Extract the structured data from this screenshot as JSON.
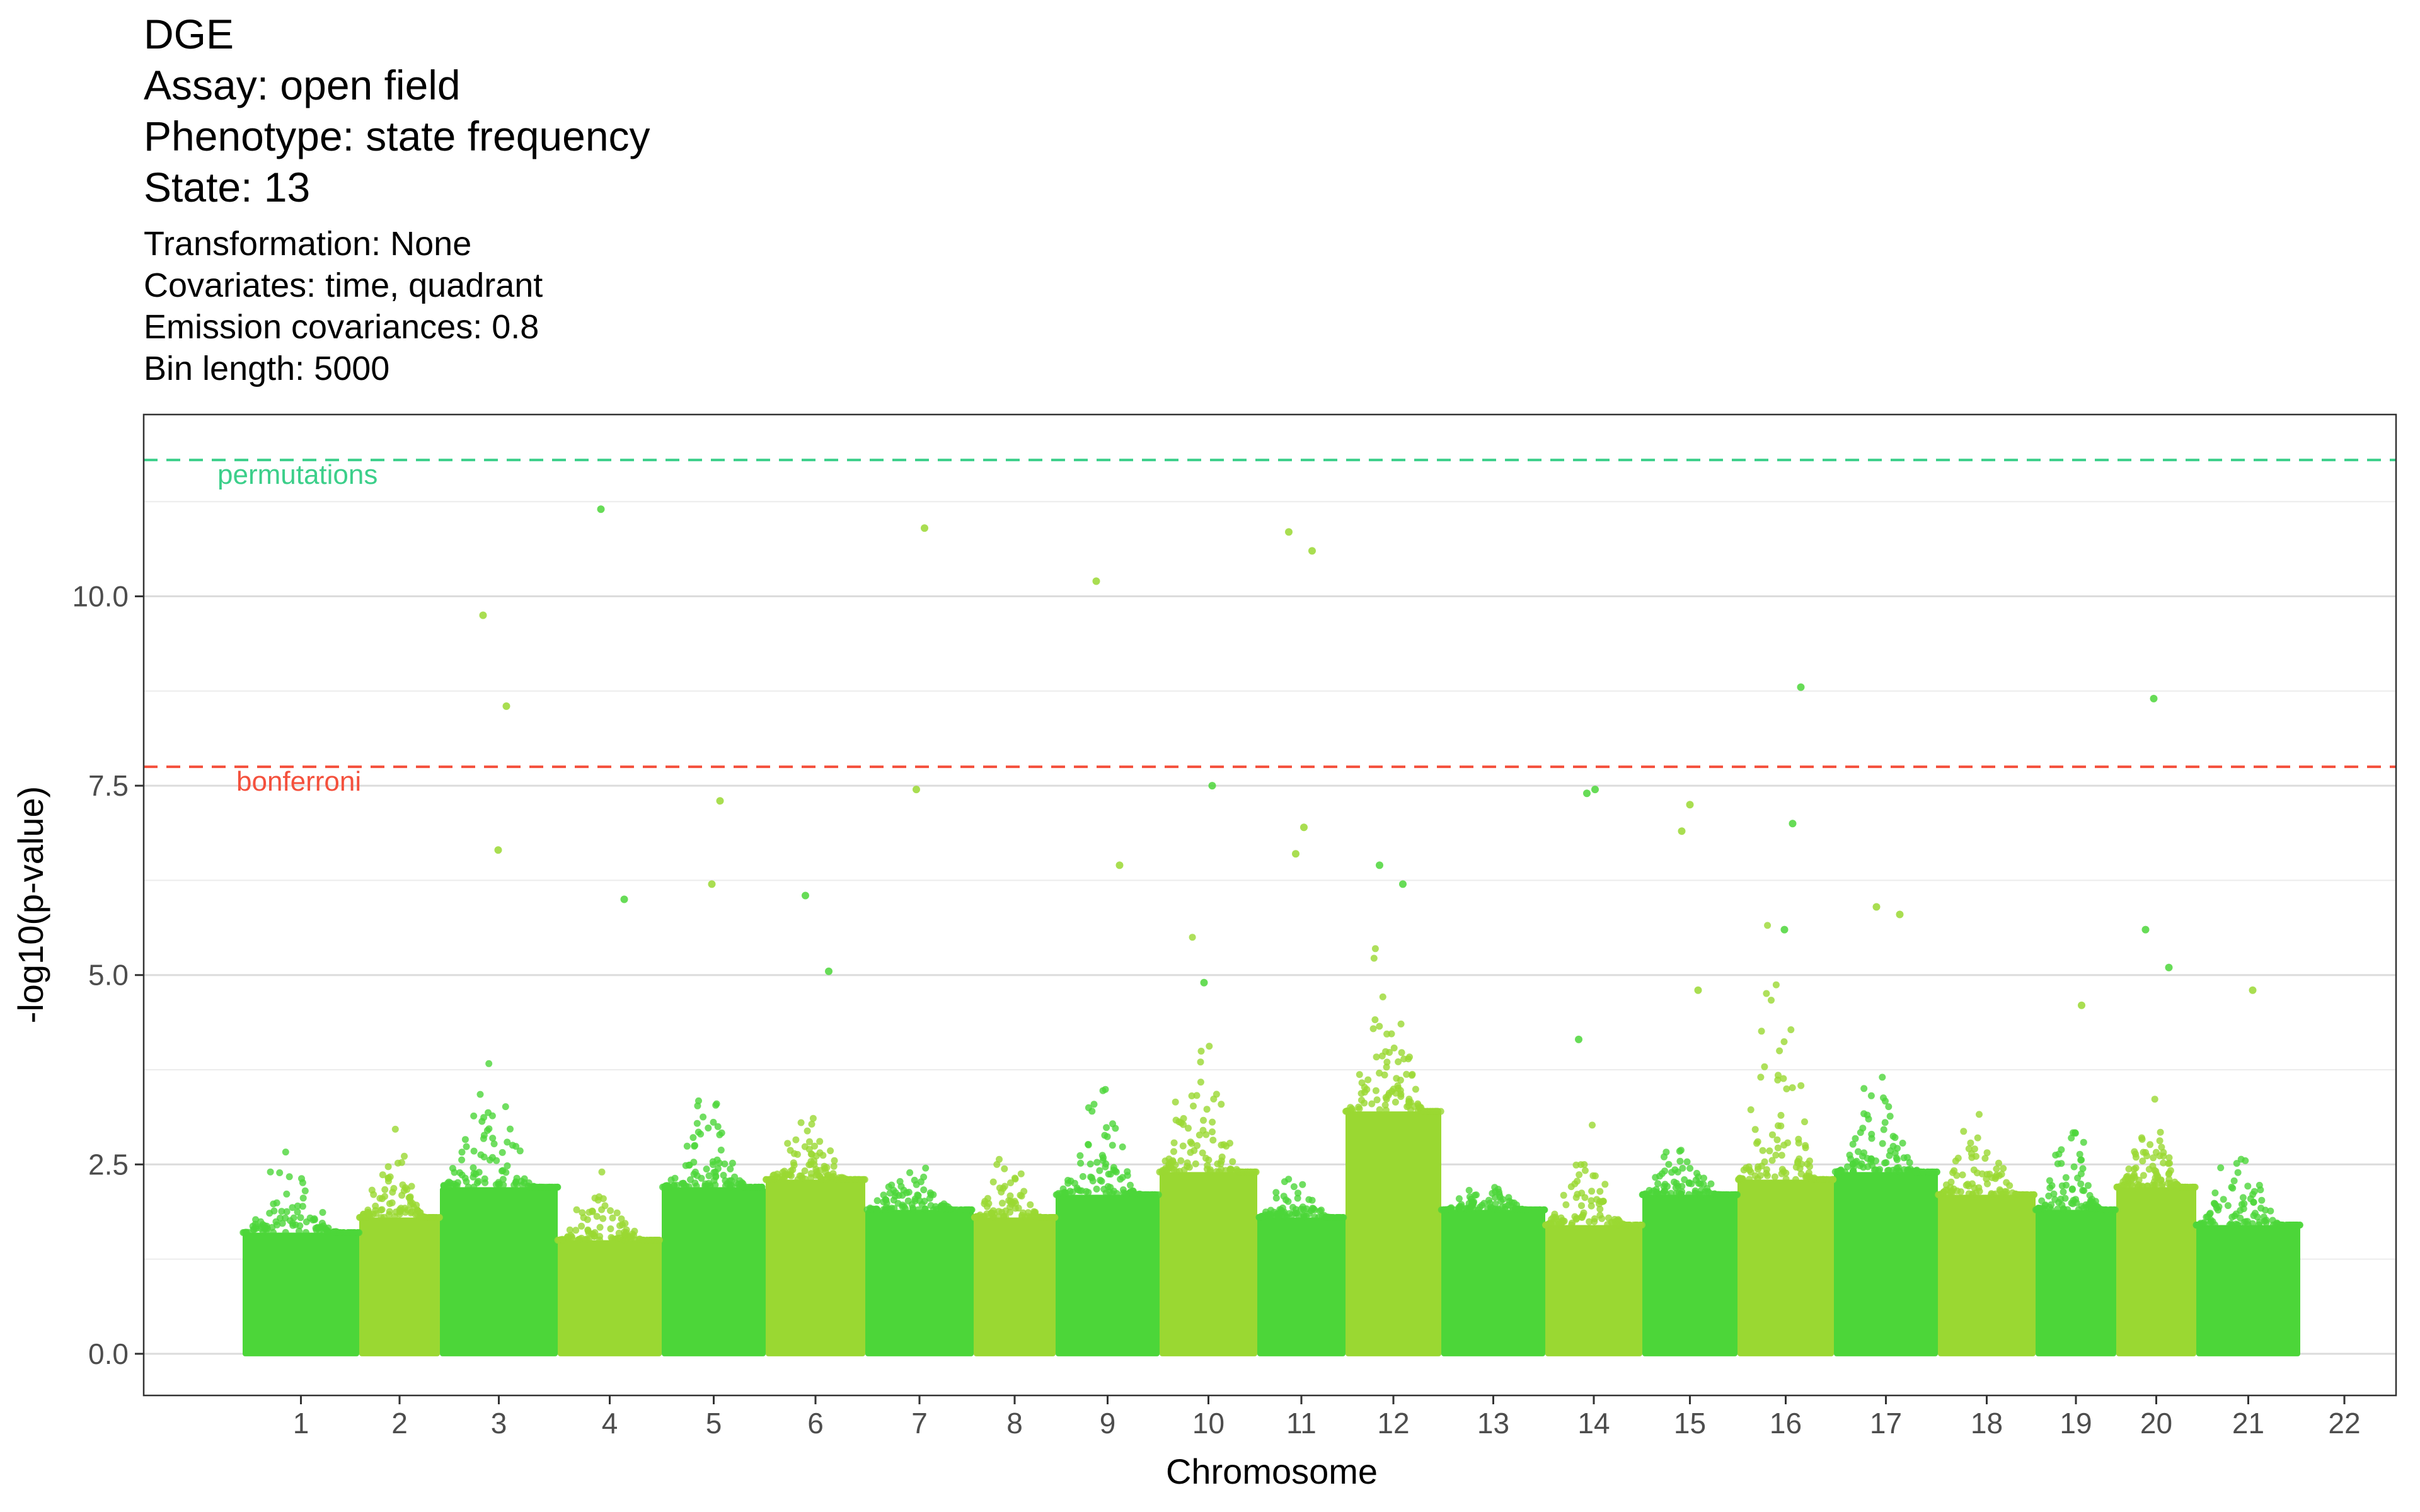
{
  "chart_data": {
    "type": "scatter",
    "title_lines": [
      "DGE",
      "Assay: open field",
      "Phenotype: state frequency",
      "State: 13"
    ],
    "subtitle_lines": [
      "Transformation: None",
      "Covariates: time, quadrant",
      "Emission covariances: 0.8",
      "Bin length: 5000"
    ],
    "xlabel": "Chromosome",
    "ylabel": "-log10(p-value)",
    "ylim": [
      -0.55,
      12.4
    ],
    "y_ticks": [
      0,
      2.5,
      5,
      7.5,
      10
    ],
    "y_tick_labels": [
      "0.0",
      "2.5",
      "5.0",
      "7.5",
      "10.0"
    ],
    "grid": true,
    "chromosomes": [
      "1",
      "2",
      "3",
      "4",
      "5",
      "6",
      "7",
      "8",
      "9",
      "10",
      "11",
      "12",
      "13",
      "14",
      "15",
      "16",
      "17",
      "18",
      "19",
      "20",
      "21",
      "22"
    ],
    "colors": {
      "green": "#4cd639",
      "lime": "#9ad832",
      "permutations": "#3ccf8a",
      "bonferroni": "#f4503c"
    },
    "thresholds": [
      {
        "label": "permutations",
        "value": 11.8
      },
      {
        "label": "bonferroni",
        "value": 7.75
      }
    ],
    "highlight_points": [
      {
        "chr": "4",
        "y": 9.75
      },
      {
        "chr": "4",
        "y": 8.55
      },
      {
        "chr": "4",
        "y": 6.65
      },
      {
        "chr": "5",
        "y": 11.15
      },
      {
        "chr": "5",
        "y": 6.0
      },
      {
        "chr": "6",
        "y": 7.3
      },
      {
        "chr": "6",
        "y": 6.2
      },
      {
        "chr": "7",
        "y": 6.05
      },
      {
        "chr": "7",
        "y": 5.05
      },
      {
        "chr": "8",
        "y": 10.9
      },
      {
        "chr": "8",
        "y": 7.45
      },
      {
        "chr": "10",
        "y": 10.2
      },
      {
        "chr": "10",
        "y": 6.45
      },
      {
        "chr": "11",
        "y": 7.5
      },
      {
        "chr": "11",
        "y": 4.9
      },
      {
        "chr": "12",
        "y": 10.85
      },
      {
        "chr": "12",
        "y": 10.6
      },
      {
        "chr": "12",
        "y": 6.95
      },
      {
        "chr": "12",
        "y": 6.6
      },
      {
        "chr": "13",
        "y": 6.45
      },
      {
        "chr": "13",
        "y": 6.2
      },
      {
        "chr": "15",
        "y": 7.45
      },
      {
        "chr": "15",
        "y": 7.4
      },
      {
        "chr": "15",
        "y": 4.15
      },
      {
        "chr": "16",
        "y": 4.8
      },
      {
        "chr": "16",
        "y": 7.25
      },
      {
        "chr": "16",
        "y": 6.9
      },
      {
        "chr": "17",
        "y": 8.8
      },
      {
        "chr": "17",
        "y": 7.0
      },
      {
        "chr": "17",
        "y": 5.6
      },
      {
        "chr": "18",
        "y": 5.9
      },
      {
        "chr": "18",
        "y": 5.8
      },
      {
        "chr": "20",
        "y": 4.6
      },
      {
        "chr": "21",
        "y": 8.65
      },
      {
        "chr": "21",
        "y": 5.6
      },
      {
        "chr": "21",
        "y": 5.1
      },
      {
        "chr": "22",
        "y": 4.8
      }
    ]
  }
}
